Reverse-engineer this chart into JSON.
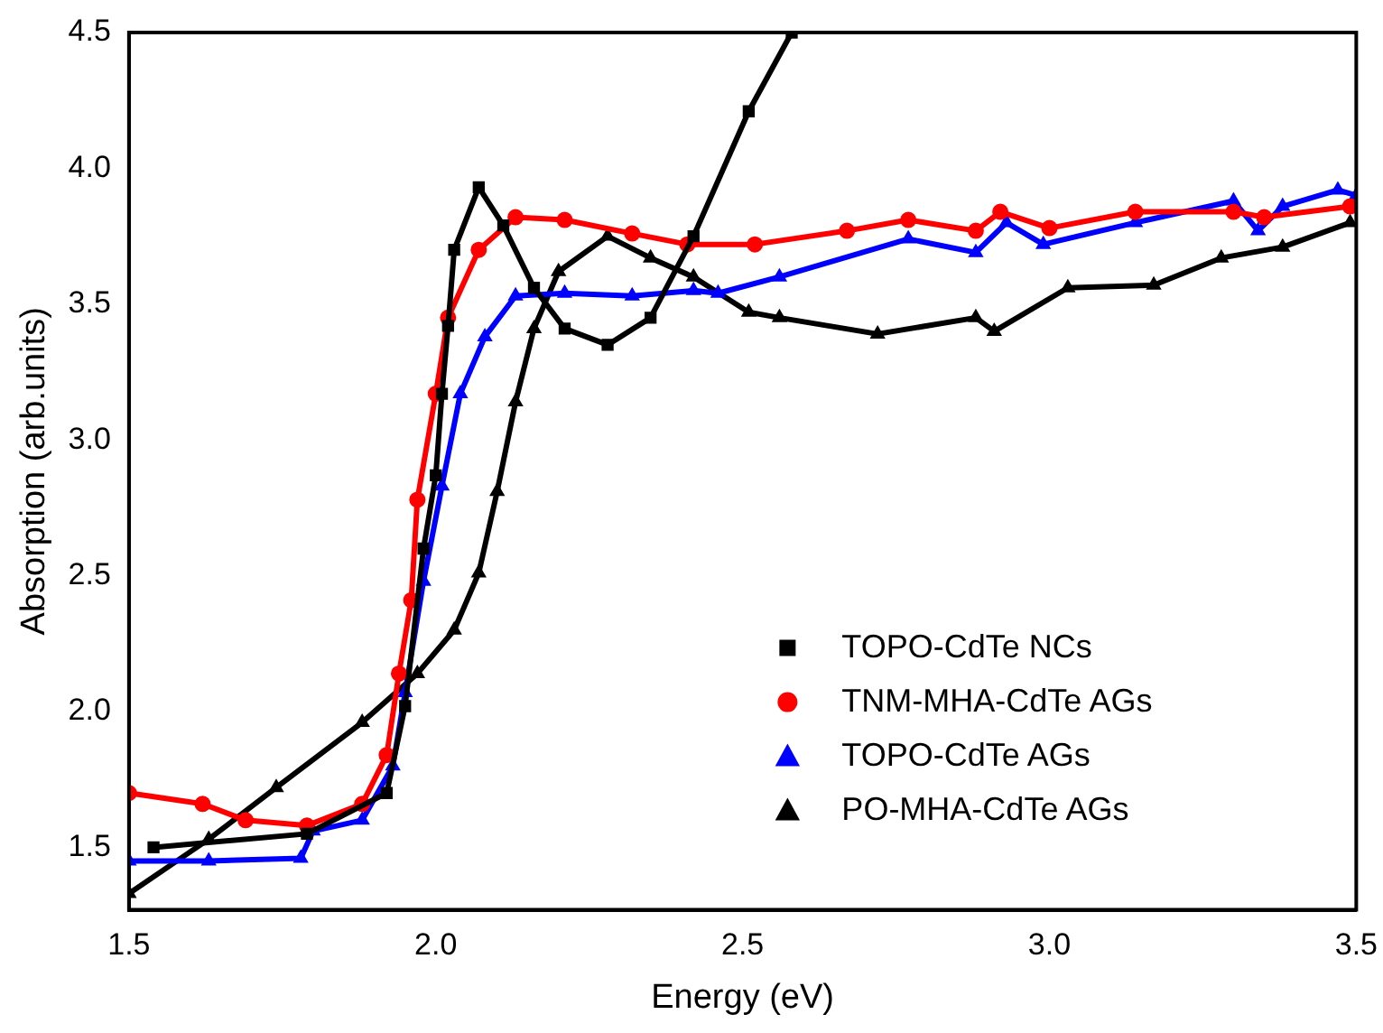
{
  "chart_data": {
    "type": "line",
    "xlabel": "Energy (eV)",
    "ylabel": "Absorption (arb.units)",
    "xlim": [
      1.5,
      3.5
    ],
    "xticks": [
      1.5,
      {
        "value": 2,
        "label": "2.0"
      },
      2.5,
      {
        "value": 3,
        "label": "3.0"
      },
      3.5
    ],
    "ylim": [
      1.27,
      4.5
    ],
    "yticks": [
      1.5,
      {
        "value": 2,
        "label": "2.0"
      },
      2.5,
      {
        "value": 3,
        "label": "3.0"
      },
      3.5,
      {
        "value": 4,
        "label": "4.0"
      },
      4.5
    ],
    "grid": false,
    "legend": "bottom right",
    "series": [
      {
        "name": "TOPO-CdTe NCs",
        "color": "#000000",
        "marker": "square",
        "x": [
          1.54,
          1.79,
          1.92,
          1.95,
          1.98,
          2.0,
          2.01,
          2.02,
          2.03,
          2.07,
          2.11,
          2.16,
          2.21,
          2.28,
          2.35,
          2.42,
          2.51,
          2.58
        ],
        "values": [
          1.5,
          1.55,
          1.7,
          2.02,
          2.6,
          2.87,
          3.17,
          3.42,
          3.7,
          3.93,
          3.79,
          3.56,
          3.41,
          3.35,
          3.45,
          3.75,
          4.21,
          4.5
        ]
      },
      {
        "name": "TNM-MHA-CdTe AGs",
        "color": "#ff0000",
        "marker": "circle",
        "x": [
          1.5,
          1.62,
          1.69,
          1.79,
          1.88,
          1.92,
          1.94,
          1.96,
          1.97,
          2.0,
          2.02,
          2.07,
          2.13,
          2.21,
          2.32,
          2.41,
          2.52,
          2.67,
          2.77,
          2.88,
          2.92,
          3.0,
          3.14,
          3.3,
          3.35,
          3.49
        ],
        "values": [
          1.7,
          1.66,
          1.6,
          1.58,
          1.66,
          1.84,
          2.14,
          2.41,
          2.78,
          3.17,
          3.45,
          3.7,
          3.82,
          3.81,
          3.76,
          3.72,
          3.72,
          3.77,
          3.81,
          3.77,
          3.84,
          3.78,
          3.84,
          3.84,
          3.82,
          3.86
        ]
      },
      {
        "name": "TOPO-CdTe AGs",
        "color": "#0000ff",
        "marker": "triangle",
        "x": [
          1.5,
          1.63,
          1.78,
          1.8,
          1.88,
          1.93,
          1.95,
          1.98,
          2.01,
          2.04,
          2.08,
          2.13,
          2.21,
          2.32,
          2.42,
          2.46,
          2.56,
          2.77,
          2.88,
          2.93,
          2.99,
          3.14,
          3.3,
          3.34,
          3.38,
          3.47,
          3.5
        ],
        "values": [
          1.45,
          1.45,
          1.46,
          1.56,
          1.6,
          1.8,
          2.07,
          2.48,
          2.83,
          3.17,
          3.38,
          3.53,
          3.54,
          3.53,
          3.55,
          3.54,
          3.6,
          3.74,
          3.69,
          3.8,
          3.72,
          3.8,
          3.88,
          3.77,
          3.86,
          3.92,
          3.9
        ]
      },
      {
        "name": "PO-MHA-CdTe AGs",
        "color": "#000000",
        "marker": "triangle",
        "x": [
          1.5,
          1.63,
          1.74,
          1.88,
          1.97,
          2.03,
          2.07,
          2.1,
          2.13,
          2.16,
          2.2,
          2.28,
          2.35,
          2.42,
          2.51,
          2.56,
          2.72,
          2.88,
          2.91,
          3.03,
          3.17,
          3.28,
          3.38,
          3.49
        ],
        "values": [
          1.33,
          1.53,
          1.72,
          1.96,
          2.14,
          2.3,
          2.51,
          2.81,
          3.14,
          3.41,
          3.62,
          3.75,
          3.67,
          3.6,
          3.47,
          3.45,
          3.39,
          3.45,
          3.4,
          3.56,
          3.57,
          3.67,
          3.71,
          3.8
        ]
      }
    ]
  }
}
